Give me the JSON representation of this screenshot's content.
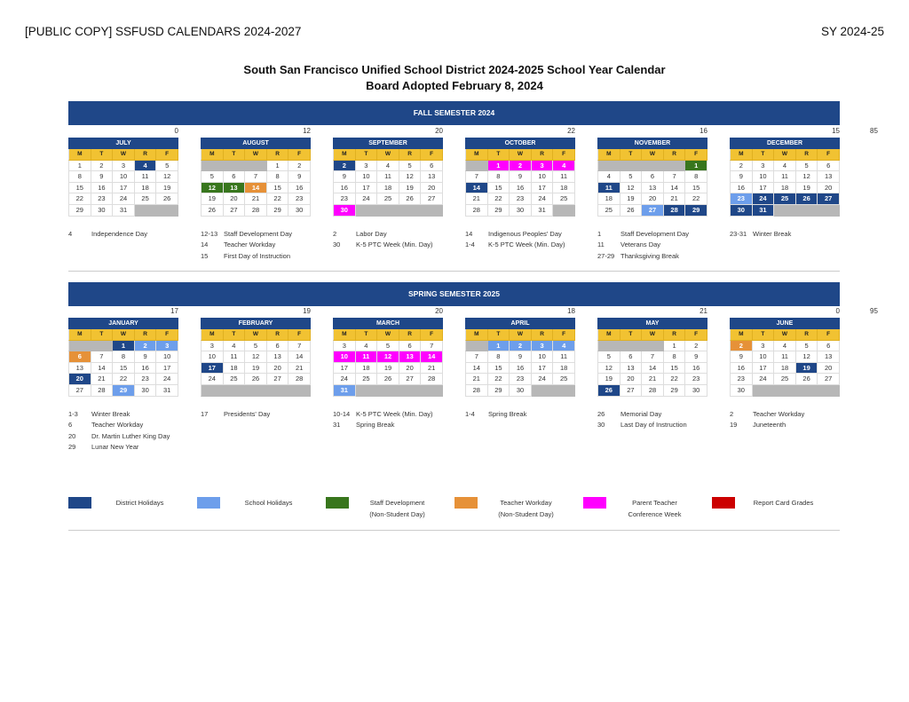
{
  "header": {
    "left": "[PUBLIC COPY] SSFUSD CALENDARS 2024-2027",
    "right": "SY 2024-25"
  },
  "title": {
    "line1": "South San Francisco Unified School District 2024-2025 School Year Calendar",
    "line2": "Board Adopted February 8, 2024"
  },
  "dow": [
    "M",
    "T",
    "W",
    "R",
    "F"
  ],
  "colors": {
    "district_holiday": "#1f4788",
    "school_holiday": "#6d9eeb",
    "staff_development": "#38761d",
    "teacher_workday": "#e69138",
    "parent_teacher_conference": "#ff00ff",
    "report_card_grades": "#cc0000",
    "no_school_day": "#b7b7b7",
    "weekday_header": "#f1c232"
  },
  "semesters": [
    {
      "label": "FALL SEMESTER 2024",
      "total": "85",
      "months": [
        {
          "name": "JULY",
          "count": "0",
          "weeks": [
            "1 2 3 4:dh 5",
            "8 9 10 11 12",
            "15 16 17 18 19",
            "22 23 24 25 26",
            "29 30 31 - -"
          ],
          "notes": [
            [
              "4",
              "Independence Day"
            ]
          ]
        },
        {
          "name": "AUGUST",
          "count": "12",
          "weeks": [
            "- - - 1 2",
            "5 6 7 8 9",
            "12:sd 13:sd 14:tw 15 16",
            "19 20 21 22 23",
            "26 27 28 29 30"
          ],
          "notes": [
            [
              "12-13",
              "Staff Development Day"
            ],
            [
              "14",
              "Teacher Workday"
            ],
            [
              "15",
              "First Day of Instruction"
            ]
          ]
        },
        {
          "name": "SEPTEMBER",
          "count": "20",
          "weeks": [
            "2:dh 3 4 5 6",
            "9 10 11 12 13",
            "16 17 18 19 20",
            "23 24 25 26 27",
            "30:ptc - - - -"
          ],
          "notes": [
            [
              "2",
              "Labor Day"
            ],
            [
              "30",
              "K-5 PTC Week (Min. Day)"
            ]
          ]
        },
        {
          "name": "OCTOBER",
          "count": "22",
          "weeks": [
            "- 1:ptc 2:ptc 3:ptc 4:ptc",
            "7 8 9 10 11",
            "14:dh 15 16 17 18",
            "21 22 23 24 25",
            "28 29 30 31 -"
          ],
          "notes": [
            [
              "14",
              "Indigenous Peoples' Day"
            ],
            [
              "1-4",
              "K-5 PTC Week (Min. Day)"
            ]
          ]
        },
        {
          "name": "NOVEMBER",
          "count": "16",
          "weeks": [
            "- - - - 1:sd",
            "4 5 6 7 8",
            "11:dh 12 13 14 15",
            "18 19 20 21 22",
            "25 26 27:sh 28:dh 29:dh"
          ],
          "notes": [
            [
              "1",
              "Staff Development Day"
            ],
            [
              "11",
              "Veterans Day"
            ],
            [
              "27-29",
              "Thanksgiving Break"
            ]
          ]
        },
        {
          "name": "DECEMBER",
          "count": "15",
          "weeks": [
            "2 3 4 5 6",
            "9 10 11 12 13",
            "16 17 18 19 20",
            "23:sh 24:dh 25:dh 26:dh 27:dh",
            "30:dh 31:dh - - -"
          ],
          "notes": [
            [
              "23-31",
              "Winter Break"
            ]
          ]
        }
      ]
    },
    {
      "label": "SPRING SEMESTER 2025",
      "total": "95",
      "months": [
        {
          "name": "JANUARY",
          "count": "17",
          "weeks": [
            "- - 1:dh 2:sh 3:sh",
            "6:tw 7 8 9 10",
            "13 14 15 16 17",
            "20:dh 21 22 23 24",
            "27 28 29:sh 30 31"
          ],
          "notes": [
            [
              "1-3",
              "Winter Break"
            ],
            [
              "6",
              "Teacher Workday"
            ],
            [
              "20",
              "Dr. Martin Luther King Day"
            ],
            [
              "29",
              "Lunar New Year"
            ]
          ]
        },
        {
          "name": "FEBRUARY",
          "count": "19",
          "weeks": [
            "3 4 5 6 7",
            "10 11 12 13 14",
            "17:dh 18 19 20 21",
            "24 25 26 27 28",
            "- - - - -"
          ],
          "notes": [
            [
              "17",
              "Presidents' Day"
            ]
          ]
        },
        {
          "name": "MARCH",
          "count": "20",
          "weeks": [
            "3 4 5 6 7",
            "10:ptc 11:ptc 12:ptc 13:ptc 14:ptc",
            "17 18 19 20 21",
            "24 25 26 27 28",
            "31:sh - - - -"
          ],
          "notes": [
            [
              "10-14",
              "K-5 PTC Week (Min. Day)"
            ],
            [
              "31",
              "Spring Break"
            ]
          ]
        },
        {
          "name": "APRIL",
          "count": "18",
          "weeks": [
            "- 1:sh 2:sh 3:sh 4:sh",
            "7 8 9 10 11",
            "14 15 16 17 18",
            "21 22 23 24 25",
            "28 29 30 - -"
          ],
          "notes": [
            [
              "1-4",
              "Spring Break"
            ]
          ]
        },
        {
          "name": "MAY",
          "count": "21",
          "weeks": [
            "- - - 1 2",
            "5 6 7 8 9",
            "12 13 14 15 16",
            "19 20 21 22 23",
            "26:dh 27 28 29 30"
          ],
          "notes": [
            [
              "26",
              "Memorial Day"
            ],
            [
              "30",
              "Last Day of Instruction"
            ]
          ]
        },
        {
          "name": "JUNE",
          "count": "0",
          "weeks": [
            "2:tw 3 4 5 6",
            "9 10 11 12 13",
            "16 17 18 19:dh 20",
            "23 24 25 26 27",
            "30 - - - -"
          ],
          "notes": [
            [
              "2",
              "Teacher Workday"
            ],
            [
              "19",
              "Juneteenth"
            ]
          ]
        }
      ]
    }
  ],
  "legend": [
    {
      "label": "District Holidays",
      "color": "#1f4788"
    },
    {
      "label": "School Holidays",
      "color": "#6d9eeb"
    },
    {
      "label": "Staff Development\n(Non-Student Day)",
      "color": "#38761d"
    },
    {
      "label": "Teacher Workday\n(Non-Student Day)",
      "color": "#e69138"
    },
    {
      "label": "Parent Teacher\nConference Week",
      "color": "#ff00ff"
    },
    {
      "label": "Report Card Grades",
      "color": "#cc0000"
    }
  ]
}
